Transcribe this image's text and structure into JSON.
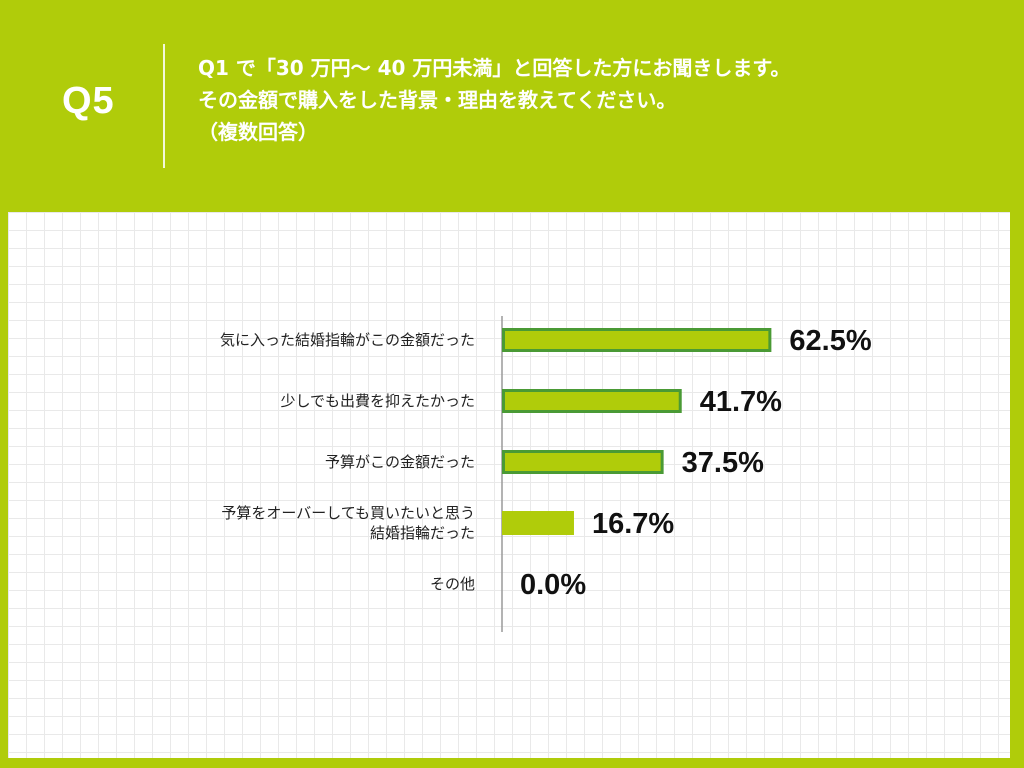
{
  "header": {
    "q_label": "Q5",
    "question_lines": [
      "Q1 で「30 万円～ 40 万円未満」と回答した方にお聞きします。",
      "その金額で購入をした背景・理由を教えてください。",
      "（複数回答）"
    ]
  },
  "colors": {
    "brand_green": "#b0cc0a",
    "bar_fill": "#b0cc0a",
    "bar_highlight_border": "#4a9a35",
    "panel_bg": "#ffffff"
  },
  "chart_data": {
    "type": "bar",
    "orientation": "horizontal",
    "categories": [
      [
        "気に入った結婚指輪がこの金額だった"
      ],
      [
        "少しでも出費を抑えたかった"
      ],
      [
        "予算がこの金額だった"
      ],
      [
        "予算をオーバーしても買いたいと思う",
        "結婚指輪だった"
      ],
      [
        "その他"
      ]
    ],
    "values": [
      62.5,
      41.7,
      37.5,
      16.7,
      0.0
    ],
    "value_labels": [
      "62.5%",
      "41.7%",
      "37.5%",
      "16.7%",
      "0.0%"
    ],
    "highlighted": [
      true,
      true,
      true,
      false,
      false
    ],
    "xlim": [
      0,
      100
    ],
    "grid": true,
    "legend": "none"
  }
}
